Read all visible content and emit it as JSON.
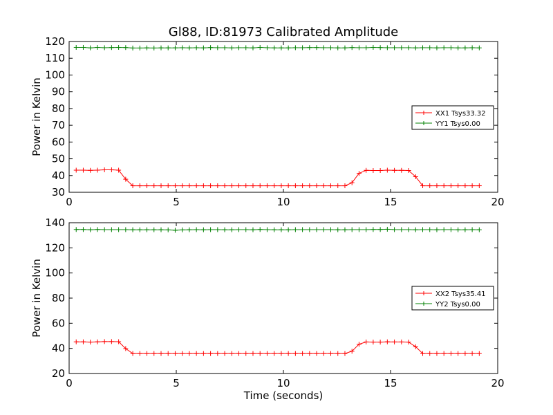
{
  "chart_data": [
    {
      "type": "line",
      "title": "Gl88, ID:81973 Calibrated Amplitude",
      "xlabel": "",
      "ylabel": "Power in Kelvin",
      "xlim": [
        0,
        20
      ],
      "ylim": [
        30,
        120
      ],
      "xticks": [
        0,
        5,
        10,
        15,
        20
      ],
      "yticks": [
        30,
        40,
        50,
        60,
        70,
        80,
        90,
        100,
        110,
        120
      ],
      "grid": false,
      "legend": "center-right",
      "x": [
        0.33,
        0.66,
        0.99,
        1.32,
        1.65,
        1.98,
        2.31,
        2.64,
        2.97,
        3.3,
        3.63,
        3.96,
        4.29,
        4.62,
        4.95,
        5.28,
        5.61,
        5.94,
        6.27,
        6.6,
        6.93,
        7.26,
        7.59,
        7.92,
        8.25,
        8.58,
        8.91,
        9.24,
        9.57,
        9.9,
        10.23,
        10.56,
        10.89,
        11.22,
        11.55,
        11.88,
        12.21,
        12.54,
        12.87,
        13.2,
        13.53,
        13.86,
        14.19,
        14.52,
        14.85,
        15.18,
        15.51,
        15.84,
        16.17,
        16.5,
        16.83,
        17.16,
        17.49,
        17.82,
        18.15,
        18.48,
        18.81,
        19.14
      ],
      "series": [
        {
          "name": "XX1 Tsys33.32",
          "color": "#ff0000",
          "values": [
            43.2,
            43.2,
            43.1,
            43.2,
            43.4,
            43.4,
            43.2,
            37.8,
            33.9,
            33.9,
            33.9,
            33.9,
            33.9,
            33.9,
            33.9,
            33.9,
            33.9,
            33.9,
            33.9,
            33.9,
            33.9,
            33.9,
            33.9,
            33.9,
            33.9,
            33.9,
            33.9,
            33.9,
            33.9,
            33.9,
            33.9,
            33.9,
            33.9,
            33.9,
            33.9,
            33.9,
            33.9,
            33.9,
            33.9,
            35.7,
            41.3,
            43.1,
            43.0,
            43.0,
            43.2,
            43.1,
            43.1,
            43.0,
            39.3,
            33.9,
            33.9,
            33.9,
            33.9,
            33.9,
            33.9,
            33.9,
            33.9,
            33.9
          ]
        },
        {
          "name": "YY1 Tsys0.00",
          "color": "#008000",
          "values": [
            116.5,
            116.5,
            116.2,
            116.5,
            116.3,
            116.4,
            116.5,
            116.4,
            116.1,
            116.1,
            116.2,
            116.1,
            116.2,
            116.2,
            116.2,
            116.3,
            116.2,
            116.3,
            116.2,
            116.4,
            116.3,
            116.3,
            116.2,
            116.3,
            116.3,
            116.2,
            116.5,
            116.3,
            116.2,
            116.2,
            116.2,
            116.3,
            116.3,
            116.4,
            116.4,
            116.3,
            116.3,
            116.2,
            116.2,
            116.4,
            116.3,
            116.3,
            116.5,
            116.4,
            116.3,
            116.3,
            116.3,
            116.3,
            116.2,
            116.3,
            116.3,
            116.2,
            116.3,
            116.3,
            116.2,
            116.2,
            116.3,
            116.2
          ]
        }
      ]
    },
    {
      "type": "line",
      "title": "",
      "xlabel": "Time (seconds)",
      "ylabel": "Power in Kelvin",
      "xlim": [
        0,
        20
      ],
      "ylim": [
        20,
        140
      ],
      "xticks": [
        0,
        5,
        10,
        15,
        20
      ],
      "yticks": [
        20,
        40,
        60,
        80,
        100,
        120,
        140
      ],
      "grid": false,
      "legend": "center-right",
      "x": [
        0.33,
        0.66,
        0.99,
        1.32,
        1.65,
        1.98,
        2.31,
        2.64,
        2.97,
        3.3,
        3.63,
        3.96,
        4.29,
        4.62,
        4.95,
        5.28,
        5.61,
        5.94,
        6.27,
        6.6,
        6.93,
        7.26,
        7.59,
        7.92,
        8.25,
        8.58,
        8.91,
        9.24,
        9.57,
        9.9,
        10.23,
        10.56,
        10.89,
        11.22,
        11.55,
        11.88,
        12.21,
        12.54,
        12.87,
        13.2,
        13.53,
        13.86,
        14.19,
        14.52,
        14.85,
        15.18,
        15.51,
        15.84,
        16.17,
        16.5,
        16.83,
        17.16,
        17.49,
        17.82,
        18.15,
        18.48,
        18.81,
        19.14
      ],
      "series": [
        {
          "name": "XX2 Tsys35.41",
          "color": "#ff0000",
          "values": [
            45.2,
            45.2,
            45.0,
            45.2,
            45.4,
            45.4,
            45.3,
            39.8,
            35.9,
            35.9,
            35.9,
            35.9,
            35.9,
            35.9,
            35.9,
            35.9,
            35.9,
            35.9,
            35.9,
            35.9,
            35.9,
            35.9,
            35.9,
            35.9,
            35.9,
            35.9,
            35.9,
            35.9,
            35.9,
            35.9,
            35.9,
            35.9,
            35.9,
            35.9,
            35.9,
            35.9,
            35.9,
            35.9,
            35.9,
            37.7,
            43.3,
            45.1,
            45.0,
            45.0,
            45.2,
            45.1,
            45.1,
            45.0,
            41.3,
            35.9,
            35.9,
            35.9,
            35.9,
            35.9,
            35.9,
            35.9,
            35.9,
            35.9
          ]
        },
        {
          "name": "YY2 Tsys0.00",
          "color": "#008000",
          "values": [
            134.6,
            134.6,
            134.4,
            134.6,
            134.5,
            134.5,
            134.5,
            134.5,
            134.4,
            134.4,
            134.4,
            134.4,
            134.4,
            134.3,
            134.0,
            134.3,
            134.4,
            134.5,
            134.4,
            134.5,
            134.5,
            134.4,
            134.4,
            134.5,
            134.5,
            134.4,
            134.6,
            134.5,
            134.4,
            134.4,
            134.4,
            134.5,
            134.5,
            134.5,
            134.5,
            134.5,
            134.5,
            134.4,
            134.4,
            134.5,
            134.5,
            134.5,
            134.6,
            134.6,
            134.8,
            134.5,
            134.5,
            134.5,
            134.4,
            134.5,
            134.5,
            134.4,
            134.5,
            134.5,
            134.4,
            134.4,
            134.5,
            134.4
          ]
        }
      ]
    }
  ]
}
